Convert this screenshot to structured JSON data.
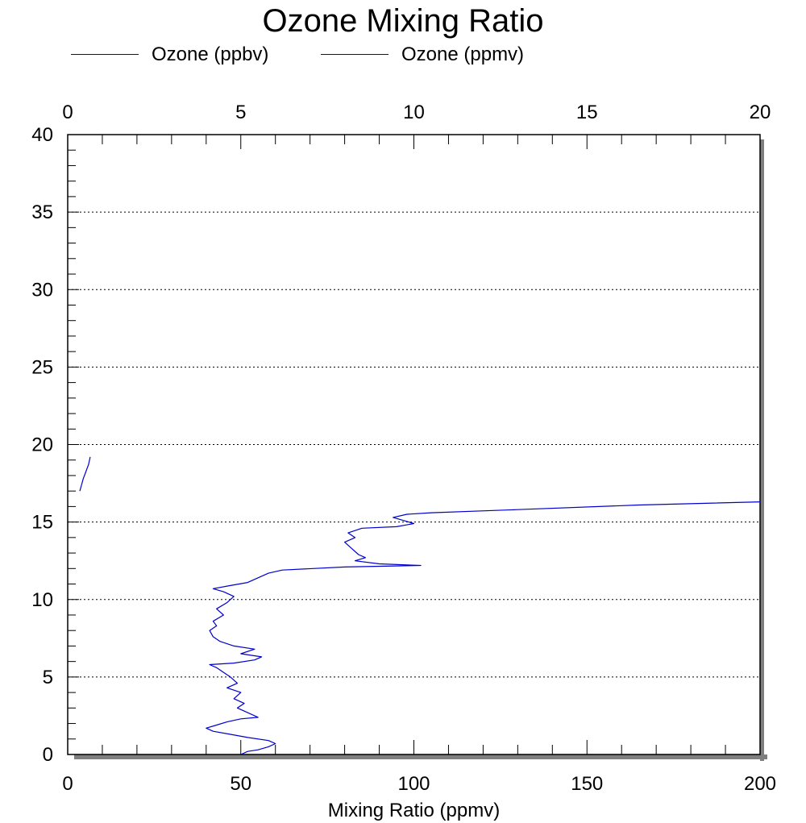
{
  "chart_data": {
    "type": "line",
    "title": "Ozone Mixing Ratio",
    "xlabel": "Mixing Ratio (ppmv)",
    "ylabel": "",
    "xlim": [
      0,
      200
    ],
    "ylim": [
      0,
      40
    ],
    "x_top_lim": [
      0,
      20
    ],
    "x_ticks": [
      "0",
      "50",
      "100",
      "150",
      "200"
    ],
    "x_top_ticks": [
      "0",
      "5",
      "10",
      "15",
      "20"
    ],
    "y_ticks": [
      "0",
      "5",
      "10",
      "15",
      "20",
      "25",
      "30",
      "35",
      "40"
    ],
    "grid": "horizontal dotted",
    "legend_position": "top",
    "series": [
      {
        "name": "Ozone (ppbv)",
        "axis": "bottom",
        "color": "#0000cc",
        "points": [
          [
            50,
            0.0
          ],
          [
            52,
            0.2
          ],
          [
            55,
            0.3
          ],
          [
            58,
            0.5
          ],
          [
            60,
            0.7
          ],
          [
            58,
            0.9
          ],
          [
            52,
            1.1
          ],
          [
            47,
            1.3
          ],
          [
            42,
            1.5
          ],
          [
            40,
            1.7
          ],
          [
            43,
            1.9
          ],
          [
            46,
            2.1
          ],
          [
            50,
            2.3
          ],
          [
            55,
            2.4
          ],
          [
            52,
            2.7
          ],
          [
            49,
            3.0
          ],
          [
            51,
            3.3
          ],
          [
            48,
            3.6
          ],
          [
            50,
            4.0
          ],
          [
            46,
            4.3
          ],
          [
            49,
            4.6
          ],
          [
            47,
            5.0
          ],
          [
            45,
            5.3
          ],
          [
            43,
            5.6
          ],
          [
            41,
            5.8
          ],
          [
            48,
            5.9
          ],
          [
            54,
            6.1
          ],
          [
            56,
            6.3
          ],
          [
            50,
            6.5
          ],
          [
            54,
            6.8
          ],
          [
            48,
            7.0
          ],
          [
            44,
            7.3
          ],
          [
            42,
            7.6
          ],
          [
            41,
            8.0
          ],
          [
            43,
            8.3
          ],
          [
            42,
            8.6
          ],
          [
            45,
            9.0
          ],
          [
            43,
            9.4
          ],
          [
            46,
            9.8
          ],
          [
            48,
            10.2
          ],
          [
            45,
            10.5
          ],
          [
            42,
            10.7
          ],
          [
            47,
            10.9
          ],
          [
            52,
            11.1
          ],
          [
            55,
            11.4
          ],
          [
            58,
            11.7
          ],
          [
            62,
            11.9
          ],
          [
            80,
            12.1
          ],
          [
            102,
            12.2
          ],
          [
            90,
            12.3
          ],
          [
            83,
            12.5
          ],
          [
            86,
            12.7
          ],
          [
            84,
            12.9
          ],
          [
            82,
            13.3
          ],
          [
            80,
            13.7
          ],
          [
            83,
            14.0
          ],
          [
            81,
            14.3
          ],
          [
            85,
            14.6
          ],
          [
            95,
            14.7
          ],
          [
            100,
            14.9
          ],
          [
            97,
            15.1
          ],
          [
            94,
            15.3
          ],
          [
            98,
            15.5
          ],
          [
            105,
            15.6
          ],
          [
            130,
            15.8
          ],
          [
            165,
            16.1
          ],
          [
            200,
            16.3
          ]
        ]
      },
      {
        "name": "Ozone (ppmv)",
        "axis": "top",
        "color": "#0000cc",
        "points": [
          [
            0.35,
            17.0
          ],
          [
            0.4,
            17.4
          ],
          [
            0.45,
            17.8
          ],
          [
            0.5,
            18.1
          ],
          [
            0.55,
            18.4
          ],
          [
            0.6,
            18.7
          ],
          [
            0.63,
            19.0
          ],
          [
            0.65,
            19.2
          ]
        ]
      }
    ]
  }
}
